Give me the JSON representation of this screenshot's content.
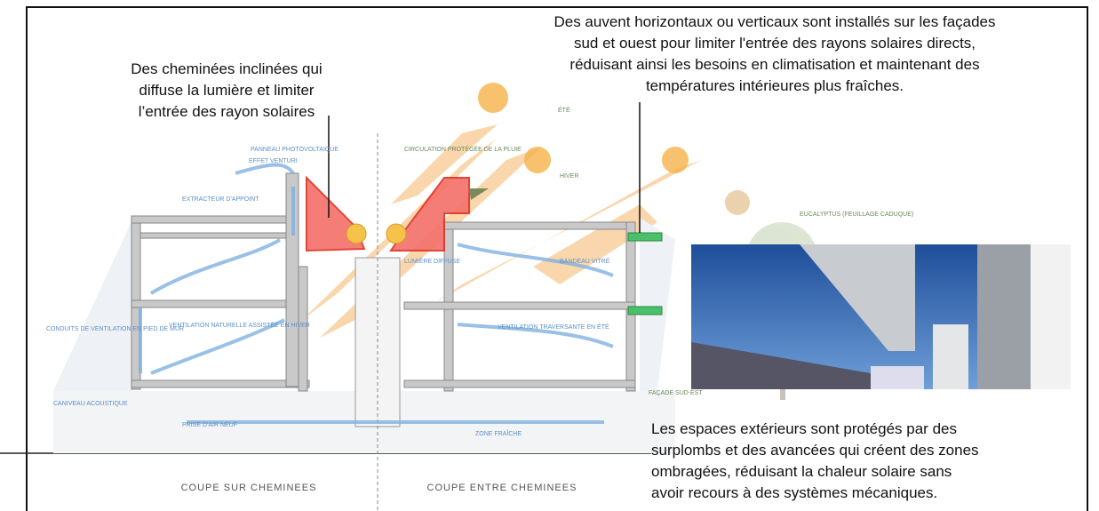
{
  "annotations": {
    "shading": {
      "lines": [
        "Des auvent horizontaux ou verticaux sont installés sur les façades",
        "sud et ouest pour limiter l'entrée des rayons solaires directs,",
        "réduisant ainsi les besoins en climatisation et maintenant des",
        "températures intérieures plus fraîches."
      ]
    },
    "chimneys": {
      "lines": [
        "Des cheminées inclinées qui",
        "diffuse la lumière et limiter",
        "l’entrée des rayon solaires"
      ]
    },
    "outdoor": {
      "lines": [
        "Les espaces extérieurs sont protégés par des",
        "surplombs et des avancées qui créent des zones",
        "ombragées, réduisant la chaleur solaire sans",
        "avoir recours à des systèmes mécaniques."
      ]
    }
  },
  "drawing_labels": {
    "photovoltaic": "PANNEAU PHOTOVOLTAIQUE",
    "venturi": "EFFET VENTURI",
    "extractor": "EXTRACTEUR D'APPOINT",
    "circulation": "CIRCULATION PROTÉGÉE DE LA PLUIE",
    "winter_ventilation": "VENTILATION NATURELLE ASSISTÉE EN HIVER",
    "ducts": "CONDUITS DE VENTILATION EN PIED DE MUR",
    "gutter": "CANIVEAU ACOUSTIQUE",
    "air_intake": "PRISE D'AIR NEUF",
    "diffuse_light": "LUMIÈRE DIFFUSE",
    "glazed_band": "BANDEAU VITRÉ",
    "summer_ventilation": "VENTILATION TRAVERSANTE EN ÉTÉ",
    "cool_zone": "ZONE FRAÎCHE",
    "eucalyptus": "EUCALYPTUS (FEUILLAGE CADUQUE)",
    "facade": "FAÇADE SUD-EST",
    "summer": "ÉTÉ",
    "winter": "HIVER"
  },
  "section_titles": {
    "left": "COUPE SUR CHEMINEES",
    "right": "COUPE ENTRE CHEMINEES"
  }
}
